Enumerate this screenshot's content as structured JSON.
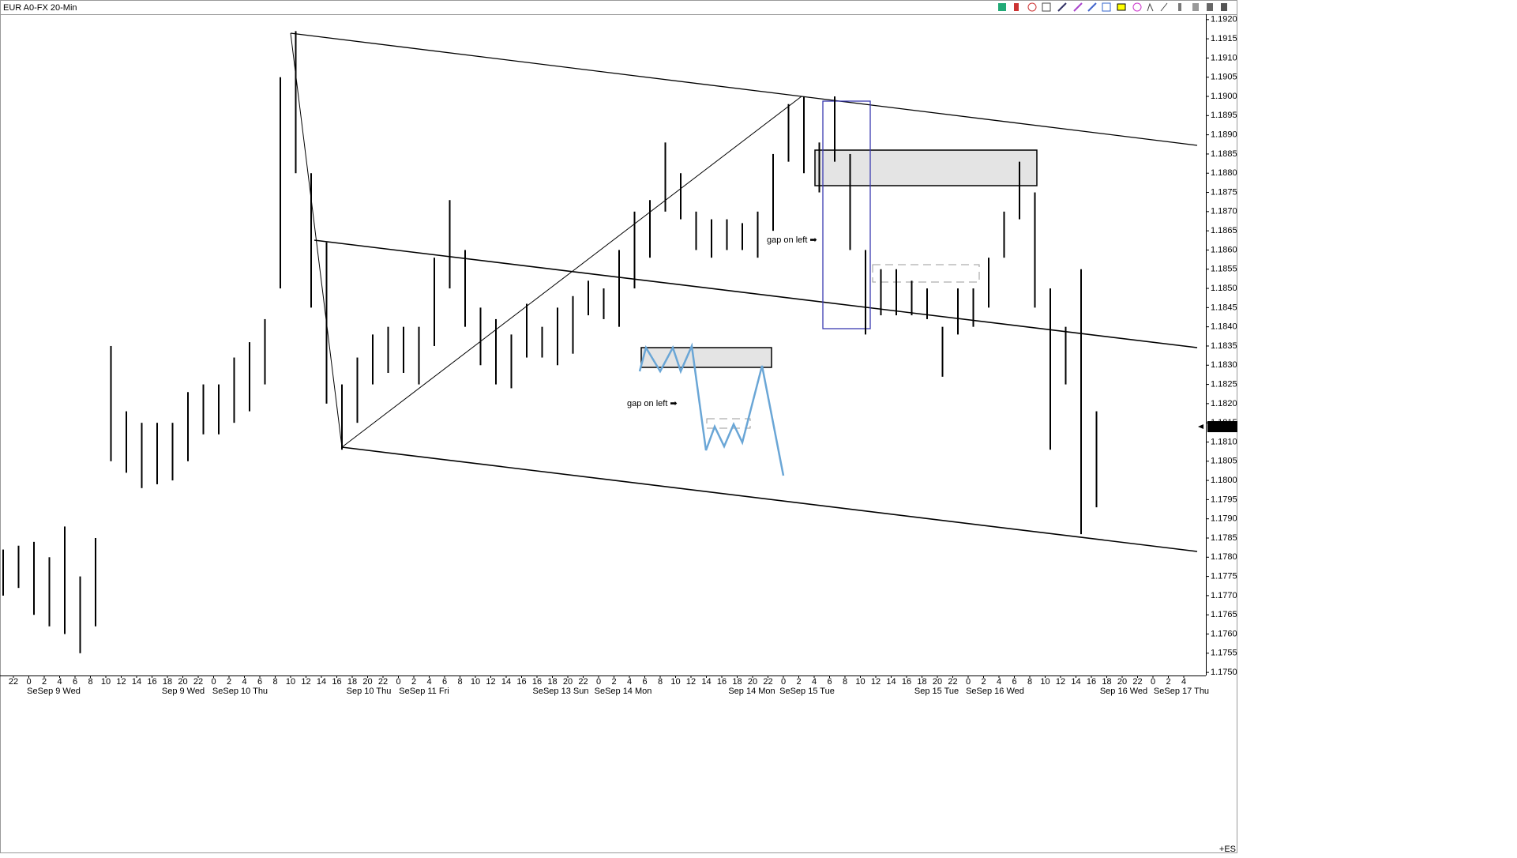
{
  "chart_data": {
    "type": "hilo",
    "title": "EUR A0-FX 20-Min",
    "color": "#000000",
    "high": [
      1.1782,
      1.1783,
      1.1784,
      1.178,
      1.1788,
      1.1775,
      1.1785,
      1.1835,
      1.1818,
      1.1815,
      1.1815,
      1.1815,
      1.1823,
      1.1825,
      1.1825,
      1.1832,
      1.1836,
      1.1842,
      1.1905,
      1.1917,
      1.188,
      1.1862,
      1.1825,
      1.1832,
      1.1838,
      1.184,
      1.184,
      1.184,
      1.1858,
      1.1873,
      1.186,
      1.1845,
      1.1842,
      1.1838,
      1.1846,
      1.184,
      1.1845,
      1.1848,
      1.1852,
      1.185,
      1.186,
      1.187,
      1.1873,
      1.1888,
      1.188,
      1.187,
      1.1868,
      1.1868,
      1.1867,
      1.187,
      1.1885,
      1.1898,
      1.19,
      1.1888,
      1.19,
      1.1885,
      1.186,
      1.1855,
      1.1855,
      1.1852,
      1.185,
      1.184,
      1.185,
      1.185,
      1.1858,
      1.187,
      1.1883,
      1.1875,
      1.185,
      1.184,
      1.1855,
      1.1818
    ],
    "low": [
      1.177,
      1.1772,
      1.1765,
      1.1762,
      1.176,
      1.1755,
      1.1762,
      1.1805,
      1.1802,
      1.1798,
      1.1799,
      1.18,
      1.1805,
      1.1812,
      1.1812,
      1.1815,
      1.1818,
      1.1825,
      1.185,
      1.188,
      1.1845,
      1.182,
      1.1808,
      1.1815,
      1.1825,
      1.1828,
      1.1828,
      1.1825,
      1.1835,
      1.185,
      1.184,
      1.183,
      1.1825,
      1.1824,
      1.1832,
      1.1832,
      1.183,
      1.1833,
      1.1843,
      1.1842,
      1.184,
      1.185,
      1.1858,
      1.187,
      1.1868,
      1.186,
      1.1858,
      1.186,
      1.186,
      1.1858,
      1.1865,
      1.1883,
      1.188,
      1.1875,
      1.1883,
      1.186,
      1.1838,
      1.1843,
      1.1843,
      1.1843,
      1.1842,
      1.1827,
      1.1838,
      1.184,
      1.1845,
      1.1858,
      1.1868,
      1.1845,
      1.1808,
      1.1825,
      1.1786,
      1.1793
    ],
    "ylim": [
      1.17492,
      1.19214
    ],
    "yticks": [
      {
        "value": 1.175,
        "label": "1.1750"
      },
      1.1755,
      {
        "value": 1.176,
        "label": "1.1760"
      },
      1.1765,
      {
        "value": 1.177,
        "label": "1.1770"
      },
      1.1775,
      {
        "value": 1.178,
        "label": "1.1780"
      },
      1.1785,
      {
        "value": 1.179,
        "label": "1.1790"
      },
      1.1795,
      {
        "value": 1.18,
        "label": "1.1800"
      },
      1.1805,
      {
        "value": 1.181,
        "label": "1.1810"
      },
      1.1815,
      {
        "value": 1.182,
        "label": "1.1820"
      },
      1.1825,
      {
        "value": 1.183,
        "label": "1.1830"
      },
      1.1835,
      {
        "value": 1.184,
        "label": "1.1840"
      },
      1.1845,
      {
        "value": 1.185,
        "label": "1.1850"
      },
      1.1855,
      {
        "value": 1.186,
        "label": "1.1860"
      },
      1.1865,
      {
        "value": 1.187,
        "label": "1.1870"
      },
      1.1875,
      {
        "value": 1.188,
        "label": "1.1880"
      },
      1.1885,
      {
        "value": 1.189,
        "label": "1.1890"
      },
      1.1895,
      {
        "value": 1.19,
        "label": "1.1900"
      },
      1.1905,
      {
        "value": 1.191,
        "label": "1.1910"
      },
      1.1915,
      {
        "value": 1.192,
        "label": "1.1920"
      }
    ],
    "last_price": 1.1814,
    "hour_labels": [
      "22",
      "0",
      "2",
      "4",
      "6",
      "8",
      "10",
      "12",
      "14",
      "16",
      "18",
      "20",
      "22",
      "0",
      "2",
      "4",
      "6",
      "8",
      "10",
      "12",
      "14",
      "16",
      "18",
      "20",
      "22",
      "0",
      "2",
      "4",
      "6",
      "8",
      "10",
      "12",
      "14",
      "16",
      "16",
      "18",
      "20",
      "22",
      "0",
      "2",
      "4",
      "6",
      "8",
      "10",
      "12",
      "14",
      "16",
      "18",
      "20",
      "22",
      "0",
      "2",
      "4",
      "6",
      "8",
      "10",
      "12",
      "14",
      "16",
      "18",
      "20",
      "22",
      "0",
      "2",
      "4",
      "6",
      "8",
      "10",
      "12",
      "14",
      "16",
      "18",
      "20",
      "22",
      "0",
      "2",
      "4"
    ],
    "date_labels": [
      "SeSep 9 Wed",
      "Sep 9 Wed",
      "SeSep 10 Thu",
      "Sep 10 Thu",
      "SeSep 11 Fri",
      "SeSep 13 Sun",
      "SeSep 14 Mon",
      "Sep 14 Mon",
      "SeSep 15 Tue",
      "Sep 15 Tue",
      "SeSep 16 Wed",
      "Sep 16 Wed",
      "SeSep 17 Thu"
    ],
    "annotations": [
      "gap on left ➡",
      "gap on left ➡"
    ],
    "corner_label": "+ES"
  }
}
